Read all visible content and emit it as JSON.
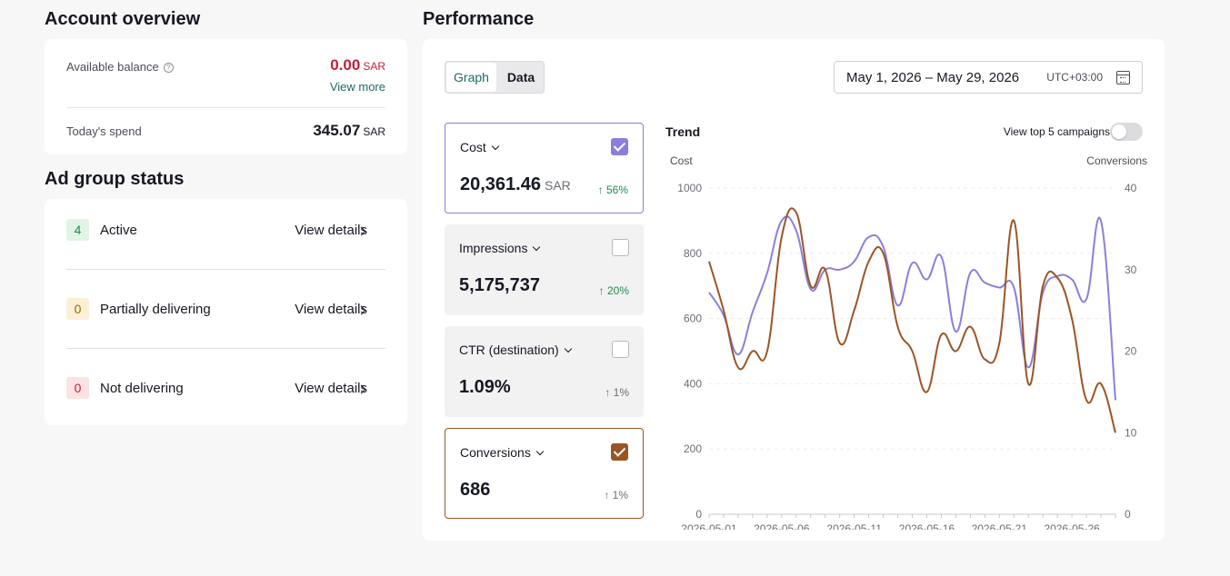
{
  "account_overview": {
    "title": "Account overview",
    "available_balance_label": "Available balance",
    "help_icon": "question-circle-icon",
    "balance_value": "0.00",
    "balance_currency": "SAR",
    "view_more": "View more",
    "todays_spend_label": "Today's spend",
    "todays_spend_value": "345.07",
    "todays_spend_currency": "SAR"
  },
  "ad_group_status": {
    "title": "Ad group status",
    "rows": [
      {
        "count": "4",
        "label": "Active",
        "link": "View details",
        "badge_bg": "#e2f4e5",
        "badge_fg": "#1f8a4c"
      },
      {
        "count": "0",
        "label": "Partially delivering",
        "link": "View details",
        "badge_bg": "#fbf0d6",
        "badge_fg": "#9a6a00"
      },
      {
        "count": "0",
        "label": "Not delivering",
        "link": "View details",
        "badge_bg": "#fbe3e3",
        "badge_fg": "#c0213a"
      }
    ]
  },
  "performance": {
    "title": "Performance",
    "view_toggle": {
      "graph": "Graph",
      "data": "Data",
      "active": "Graph"
    },
    "date_range": "May 1, 2026 – May 29, 2026",
    "timezone": "UTC+03:00",
    "calendar_icon": "calendar-icon",
    "metrics": [
      {
        "name": "Cost",
        "value": "20,361.46",
        "currency": "SAR",
        "change": "↑ 56%",
        "checked": true
      },
      {
        "name": "Impressions",
        "value": "5,175,737",
        "currency": "",
        "change": "↑ 20%",
        "checked": false
      },
      {
        "name": "CTR (destination)",
        "value": "1.09%",
        "currency": "",
        "change": "↑ 1%",
        "checked": false
      },
      {
        "name": "Conversions",
        "value": "686",
        "currency": "",
        "change": "↑ 1%",
        "checked": true
      }
    ],
    "trend_title": "Trend",
    "view_top5_label": "View top 5 campaigns",
    "view_top5_on": false
  },
  "chart_data": {
    "type": "line",
    "left_axis_label": "Cost",
    "right_axis_label": "Conversions",
    "left_ylim": [
      0,
      1000
    ],
    "right_ylim": [
      0,
      40
    ],
    "left_ticks": [
      "0",
      "200",
      "400",
      "600",
      "800",
      "1000"
    ],
    "right_ticks": [
      "0",
      "10",
      "20",
      "30",
      "40"
    ],
    "x_tick_labels": [
      "2026-05-01",
      "2026-05-06",
      "2026-05-11",
      "2026-05-16",
      "2026-05-21",
      "2026-05-26"
    ],
    "x": [
      "2026-05-01",
      "2026-05-02",
      "2026-05-03",
      "2026-05-04",
      "2026-05-05",
      "2026-05-06",
      "2026-05-07",
      "2026-05-08",
      "2026-05-09",
      "2026-05-10",
      "2026-05-11",
      "2026-05-12",
      "2026-05-13",
      "2026-05-14",
      "2026-05-15",
      "2026-05-16",
      "2026-05-17",
      "2026-05-18",
      "2026-05-19",
      "2026-05-20",
      "2026-05-21",
      "2026-05-22",
      "2026-05-23",
      "2026-05-24",
      "2026-05-25",
      "2026-05-26",
      "2026-05-27",
      "2026-05-28",
      "2026-05-29"
    ],
    "grid": true,
    "series": [
      {
        "name": "Cost",
        "axis": "left",
        "color": "#8b7fdb",
        "values": [
          680,
          610,
          490,
          620,
          740,
          900,
          870,
          690,
          750,
          750,
          775,
          850,
          820,
          640,
          770,
          720,
          790,
          560,
          740,
          710,
          695,
          695,
          450,
          680,
          730,
          720,
          660,
          900,
          350
        ]
      },
      {
        "name": "Conversions",
        "axis": "right",
        "color": "#9a5525",
        "values": [
          31,
          25,
          18,
          20,
          20,
          34,
          37,
          28,
          30,
          21,
          25,
          31,
          32,
          23,
          20,
          15,
          22,
          20,
          23,
          19,
          21,
          36,
          16,
          28,
          29,
          24,
          14,
          16,
          10
        ]
      }
    ]
  }
}
